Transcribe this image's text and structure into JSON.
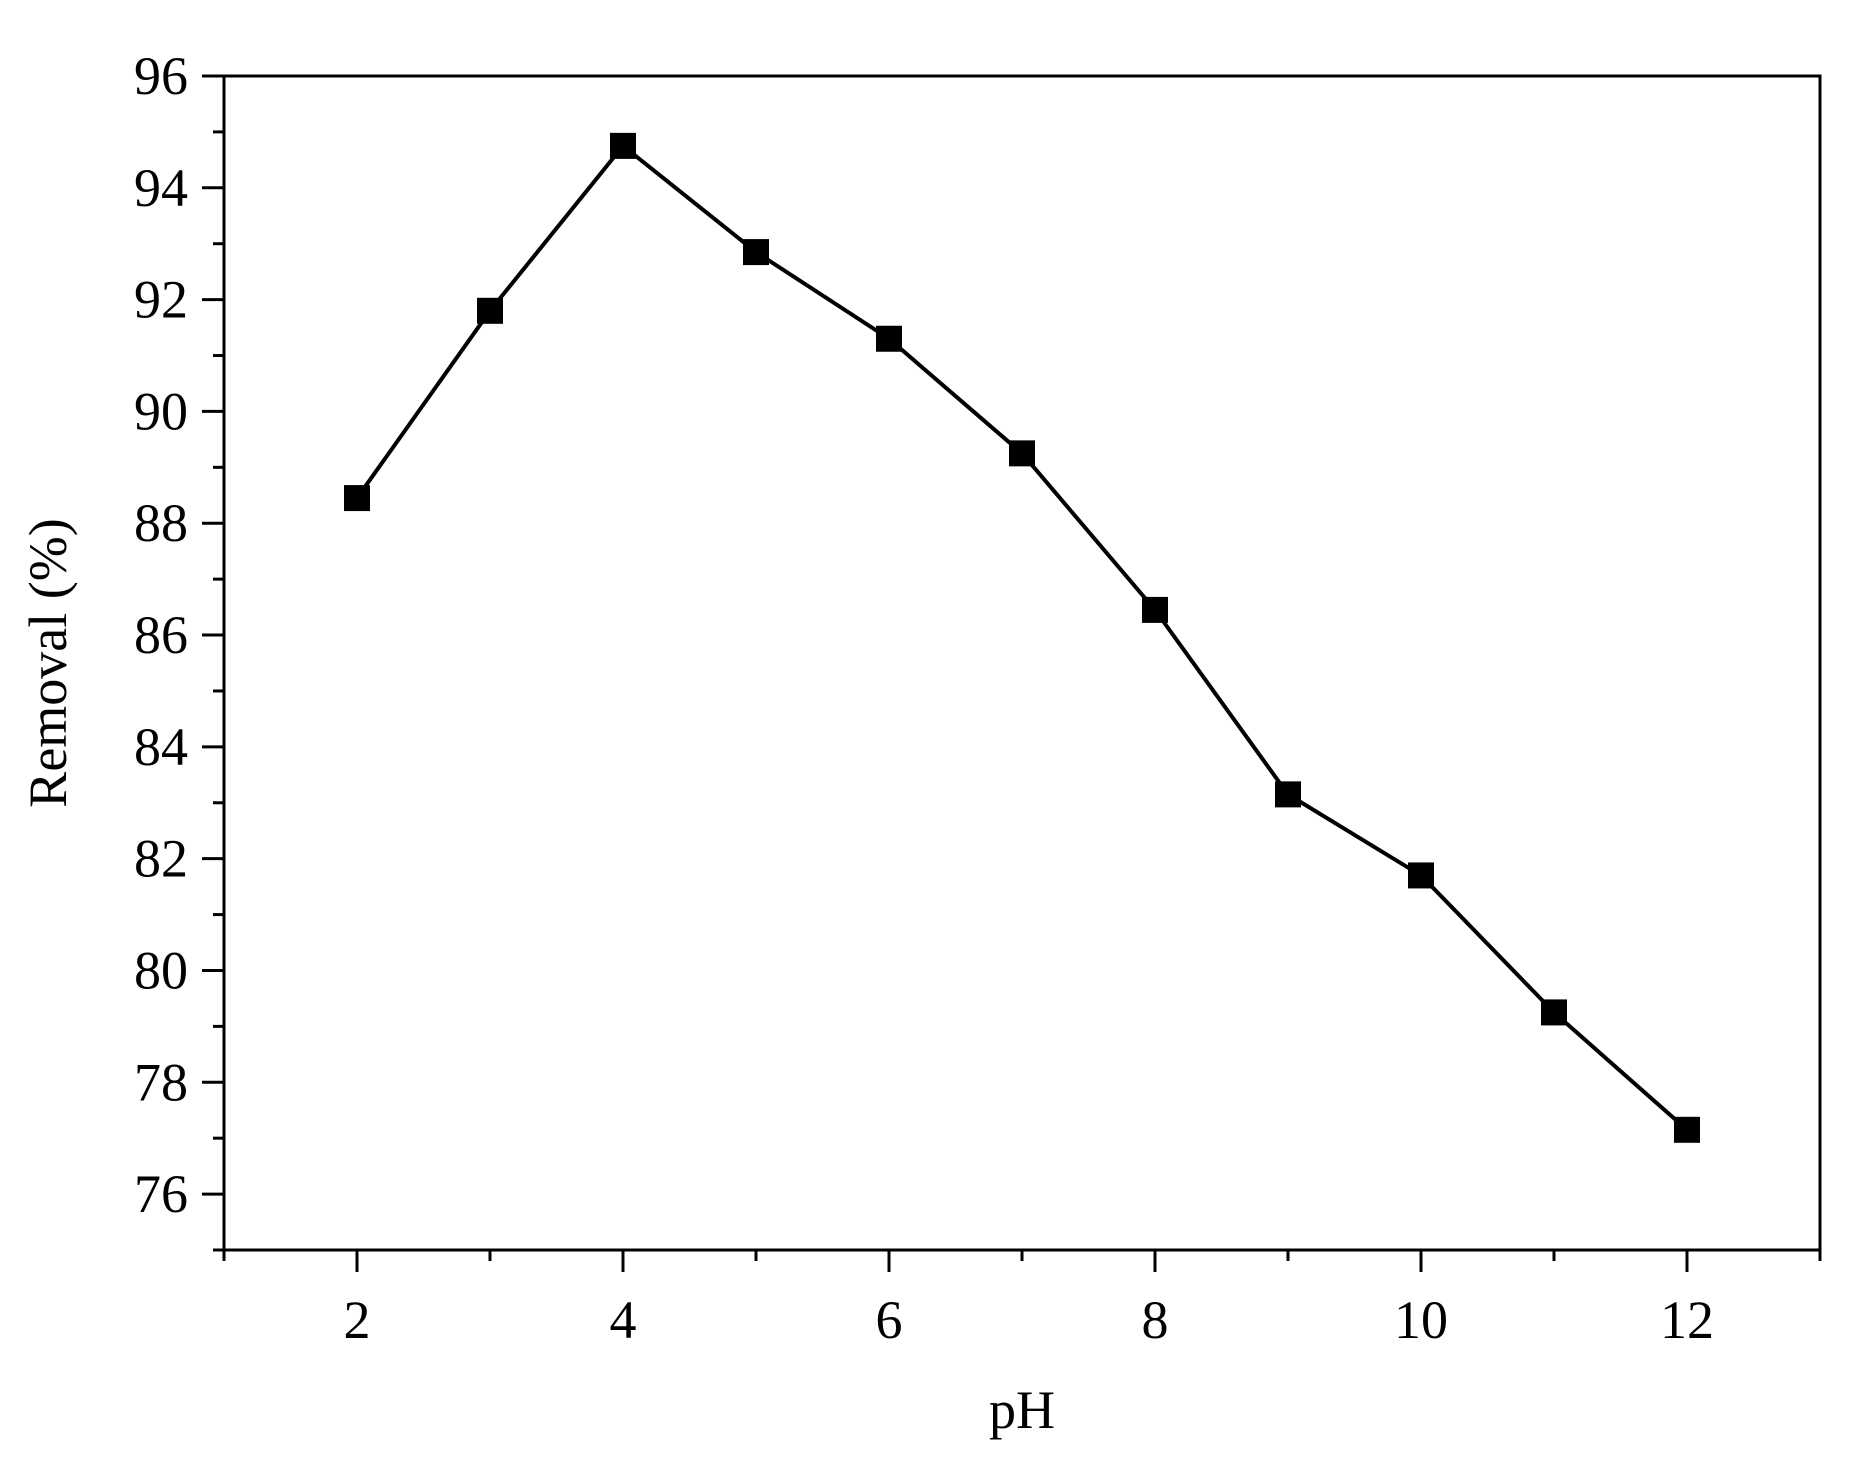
{
  "chart_data": {
    "type": "line",
    "title": "",
    "xlabel": "pH",
    "ylabel": "Removal (%)",
    "xlim": [
      1,
      13
    ],
    "ylim": [
      75,
      96
    ],
    "x_ticks": [
      2,
      4,
      6,
      8,
      10,
      12
    ],
    "y_ticks": [
      76,
      78,
      80,
      82,
      84,
      86,
      88,
      90,
      92,
      94,
      96
    ],
    "grid": false,
    "legend": "none",
    "series": [
      {
        "marker": "square",
        "color": "#000000",
        "x": [
          2,
          3,
          4,
          5,
          6,
          7,
          8,
          9,
          10,
          11,
          12
        ],
        "y": [
          88.45,
          91.8,
          94.75,
          92.85,
          91.3,
          89.25,
          86.45,
          83.15,
          81.7,
          79.25,
          77.15
        ]
      }
    ]
  }
}
